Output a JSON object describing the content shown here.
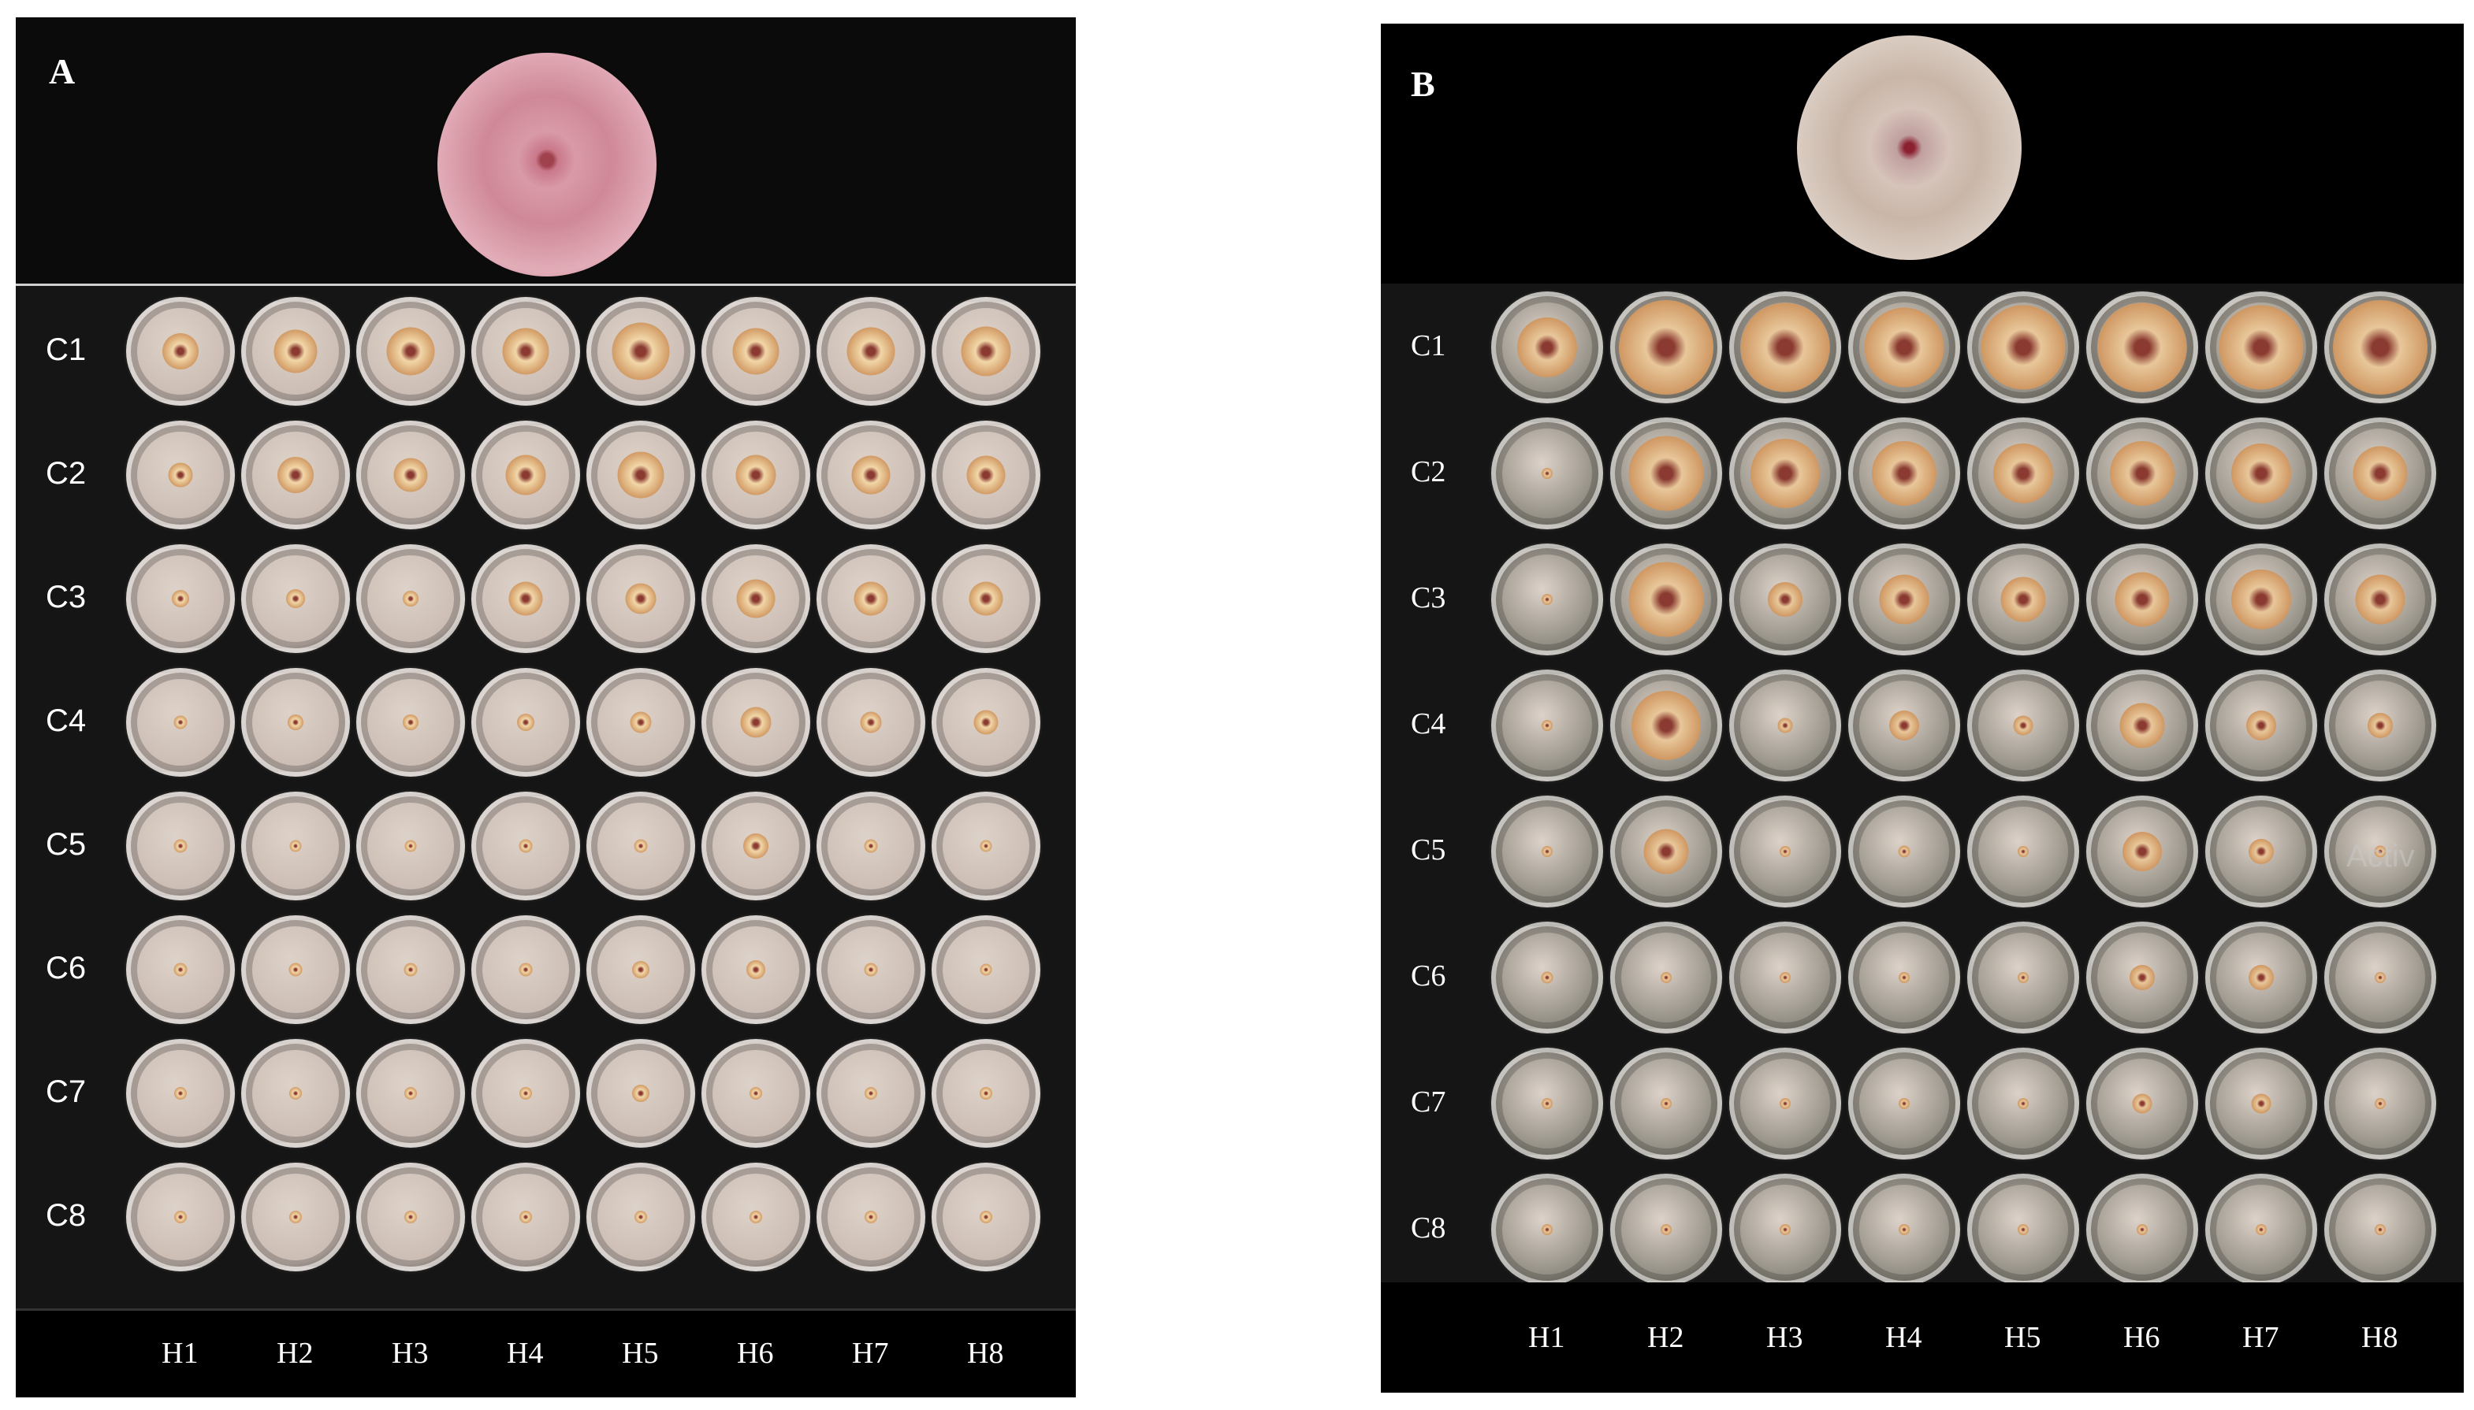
{
  "panel_a": {
    "letter": "A",
    "rows": [
      "C1",
      "C2",
      "C3",
      "C4",
      "C5",
      "C6",
      "C7",
      "C8"
    ],
    "cols": [
      "H1",
      "H2",
      "H3",
      "H4",
      "H5",
      "H6",
      "H7",
      "H8"
    ],
    "dish_fill": "#cbbcb3",
    "colony_color": "#f2d7a8",
    "growth": [
      [
        0.38,
        0.45,
        0.5,
        0.48,
        0.6,
        0.48,
        0.5,
        0.52
      ],
      [
        0.25,
        0.38,
        0.35,
        0.42,
        0.48,
        0.42,
        0.4,
        0.4
      ],
      [
        0.18,
        0.2,
        0.16,
        0.35,
        0.32,
        0.4,
        0.35,
        0.35
      ],
      [
        0.14,
        0.16,
        0.16,
        0.18,
        0.22,
        0.32,
        0.22,
        0.25
      ],
      [
        0.14,
        0.12,
        0.12,
        0.14,
        0.14,
        0.26,
        0.14,
        0.12
      ],
      [
        0.14,
        0.14,
        0.14,
        0.14,
        0.18,
        0.2,
        0.14,
        0.12
      ],
      [
        0.13,
        0.13,
        0.13,
        0.13,
        0.18,
        0.13,
        0.13,
        0.13
      ],
      [
        0.13,
        0.13,
        0.13,
        0.13,
        0.13,
        0.13,
        0.13,
        0.13
      ]
    ]
  },
  "panel_b": {
    "letter": "B",
    "rows": [
      "C1",
      "C2",
      "C3",
      "C4",
      "C5",
      "C6",
      "C7",
      "C8"
    ],
    "cols": [
      "H1",
      "H2",
      "H3",
      "H4",
      "H5",
      "H6",
      "H7",
      "H8"
    ],
    "dish_fill": "#8f8b80",
    "colony_color": "#e8c79a",
    "growth": [
      [
        0.6,
        0.95,
        0.9,
        0.8,
        0.85,
        0.9,
        0.85,
        0.95
      ],
      [
        0.08,
        0.75,
        0.7,
        0.65,
        0.6,
        0.65,
        0.6,
        0.55
      ],
      [
        0.06,
        0.75,
        0.35,
        0.5,
        0.45,
        0.55,
        0.6,
        0.5
      ],
      [
        0.05,
        0.7,
        0.15,
        0.3,
        0.2,
        0.45,
        0.3,
        0.25
      ],
      [
        0.05,
        0.45,
        0.1,
        0.12,
        0.1,
        0.4,
        0.25,
        0.12
      ],
      [
        0.12,
        0.08,
        0.08,
        0.08,
        0.08,
        0.25,
        0.25,
        0.08
      ],
      [
        0.08,
        0.08,
        0.08,
        0.08,
        0.08,
        0.2,
        0.2,
        0.08
      ],
      [
        0.08,
        0.08,
        0.08,
        0.08,
        0.08,
        0.08,
        0.08,
        0.08
      ]
    ],
    "watermark": "Activ"
  }
}
